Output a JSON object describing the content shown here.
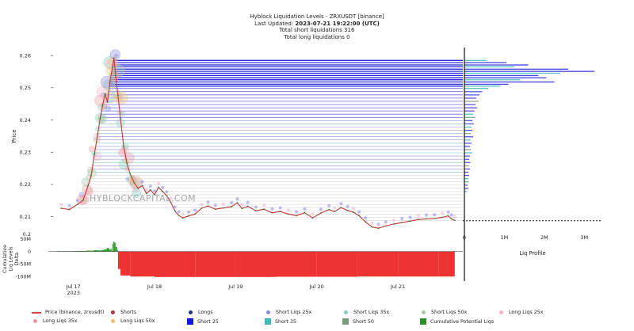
{
  "header": {
    "title": "Hyblock Liquidation Levels - ZRXUSDT [binance]",
    "updated_label": "Last Updated:",
    "updated_value": "2023-07-21 19:22:00 (UTC)",
    "short_total": "Total short liquidations 316",
    "long_total": "Total long liquidations 0"
  },
  "watermark": "HYBLOCKCAPITAL.COM",
  "chart_data": {
    "type": "line",
    "price_axis": {
      "label": "Price",
      "ticks": [
        "0.21",
        "0.22",
        "0.23",
        "0.24",
        "0.25",
        "0.26"
      ],
      "tick_values": [
        0.21,
        0.22,
        0.23,
        0.24,
        0.25,
        0.26
      ],
      "range": [
        0.2035,
        0.2625
      ],
      "bottom_label": "0.2"
    },
    "delta_axis": {
      "label": "Cumulative Liq Levels Delta",
      "ticks": [
        "50M",
        "0",
        "-50M",
        "-100M"
      ],
      "tick_values": [
        50,
        0,
        -50,
        -100
      ],
      "range": [
        -112,
        62
      ]
    },
    "time_axis": {
      "ticks": [
        "Jul 17",
        "Jul 18",
        "Jul 19",
        "Jul 20",
        "Jul 21"
      ],
      "tick_values": [
        0,
        1,
        2,
        3,
        4
      ],
      "sub_label": "2023",
      "range": [
        -0.25,
        4.8
      ]
    },
    "profile_axis": {
      "label": "Liq Profile",
      "ticks": [
        "0",
        "1M",
        "2M",
        "3M"
      ],
      "tick_values": [
        0,
        1,
        2,
        3
      ],
      "range": [
        0,
        3.45
      ]
    },
    "price_series": {
      "name": "Price (binance, zrxusdt)",
      "color": "#cc3333",
      "points": [
        [
          -0.15,
          0.2126
        ],
        [
          -0.05,
          0.2122
        ],
        [
          0.05,
          0.2138
        ],
        [
          0.12,
          0.2151
        ],
        [
          0.18,
          0.2195
        ],
        [
          0.22,
          0.2228
        ],
        [
          0.26,
          0.2295
        ],
        [
          0.3,
          0.2356
        ],
        [
          0.33,
          0.2405
        ],
        [
          0.36,
          0.2445
        ],
        [
          0.39,
          0.2482
        ],
        [
          0.42,
          0.2455
        ],
        [
          0.45,
          0.2518
        ],
        [
          0.48,
          0.2562
        ],
        [
          0.5,
          0.2592
        ],
        [
          0.52,
          0.2538
        ],
        [
          0.55,
          0.2476
        ],
        [
          0.58,
          0.2405
        ],
        [
          0.62,
          0.2318
        ],
        [
          0.66,
          0.2265
        ],
        [
          0.7,
          0.2232
        ],
        [
          0.75,
          0.2205
        ],
        [
          0.8,
          0.2188
        ],
        [
          0.85,
          0.2196
        ],
        [
          0.9,
          0.2172
        ],
        [
          0.95,
          0.2183
        ],
        [
          1.0,
          0.2168
        ],
        [
          1.05,
          0.2191
        ],
        [
          1.1,
          0.2178
        ],
        [
          1.15,
          0.2165
        ],
        [
          1.2,
          0.2145
        ],
        [
          1.25,
          0.2118
        ],
        [
          1.3,
          0.2103
        ],
        [
          1.35,
          0.2096
        ],
        [
          1.42,
          0.2102
        ],
        [
          1.5,
          0.2108
        ],
        [
          1.58,
          0.2126
        ],
        [
          1.66,
          0.2133
        ],
        [
          1.75,
          0.2123
        ],
        [
          1.85,
          0.2127
        ],
        [
          1.95,
          0.2131
        ],
        [
          2.02,
          0.2143
        ],
        [
          2.08,
          0.2125
        ],
        [
          2.15,
          0.2132
        ],
        [
          2.25,
          0.2118
        ],
        [
          2.35,
          0.2123
        ],
        [
          2.45,
          0.2112
        ],
        [
          2.55,
          0.2116
        ],
        [
          2.65,
          0.2108
        ],
        [
          2.75,
          0.2103
        ],
        [
          2.85,
          0.2112
        ],
        [
          2.95,
          0.2096
        ],
        [
          3.05,
          0.2111
        ],
        [
          3.15,
          0.2122
        ],
        [
          3.22,
          0.2116
        ],
        [
          3.3,
          0.2128
        ],
        [
          3.38,
          0.2119
        ],
        [
          3.45,
          0.2114
        ],
        [
          3.52,
          0.2103
        ],
        [
          3.6,
          0.2084
        ],
        [
          3.68,
          0.2068
        ],
        [
          3.76,
          0.2064
        ],
        [
          3.85,
          0.2071
        ],
        [
          3.95,
          0.2077
        ],
        [
          4.05,
          0.2082
        ],
        [
          4.15,
          0.2086
        ],
        [
          4.25,
          0.2091
        ],
        [
          4.35,
          0.2093
        ],
        [
          4.45,
          0.2094
        ],
        [
          4.55,
          0.2098
        ],
        [
          4.62,
          0.2102
        ],
        [
          4.66,
          0.2093
        ],
        [
          4.7,
          0.2088
        ]
      ]
    },
    "short_levels": [
      0.2585,
      0.2578,
      0.2571,
      0.2565,
      0.2558,
      0.2551,
      0.2545,
      0.2538,
      0.2531,
      0.2525,
      0.2518,
      0.2511,
      0.2505,
      0.2498,
      0.2488,
      0.2478,
      0.2468,
      0.2458,
      0.2448,
      0.2438,
      0.2428,
      0.2418,
      0.2408,
      0.2398,
      0.2388,
      0.2378,
      0.2368,
      0.2358,
      0.2348,
      0.2338,
      0.2328,
      0.2318,
      0.2308,
      0.2298,
      0.2288,
      0.2278,
      0.2268,
      0.2258,
      0.2248,
      0.2238,
      0.2228,
      0.2218,
      0.2208,
      0.2198,
      0.2188,
      0.2178,
      0.2168,
      0.2158,
      0.2148,
      0.2138,
      0.2128,
      0.2118,
      0.2108,
      0.2098,
      0.2088
    ],
    "liq_profile": [
      [
        0.2585,
        0.55
      ],
      [
        0.2578,
        1.05
      ],
      [
        0.2571,
        1.6
      ],
      [
        0.2565,
        1.25
      ],
      [
        0.2558,
        2.6
      ],
      [
        0.2551,
        3.25
      ],
      [
        0.2545,
        2.4
      ],
      [
        0.2538,
        1.85
      ],
      [
        0.2531,
        2.05
      ],
      [
        0.2525,
        1.4
      ],
      [
        0.2518,
        2.25
      ],
      [
        0.2511,
        1.1
      ],
      [
        0.2505,
        0.9
      ],
      [
        0.2498,
        0.6
      ],
      [
        0.2488,
        0.45
      ],
      [
        0.2478,
        0.38
      ],
      [
        0.2468,
        0.3
      ],
      [
        0.2458,
        0.35
      ],
      [
        0.2448,
        0.28
      ],
      [
        0.2438,
        0.32
      ],
      [
        0.2428,
        0.25
      ],
      [
        0.2418,
        0.22
      ],
      [
        0.2408,
        0.28
      ],
      [
        0.2398,
        0.2
      ],
      [
        0.2388,
        0.24
      ],
      [
        0.2378,
        0.18
      ],
      [
        0.2368,
        0.2
      ],
      [
        0.2358,
        0.16
      ],
      [
        0.2348,
        0.22
      ],
      [
        0.2338,
        0.15
      ],
      [
        0.2328,
        0.18
      ],
      [
        0.2318,
        0.14
      ],
      [
        0.2308,
        0.16
      ],
      [
        0.2298,
        0.2
      ],
      [
        0.2288,
        0.14
      ],
      [
        0.2278,
        0.12
      ],
      [
        0.2268,
        0.15
      ],
      [
        0.2258,
        0.12
      ],
      [
        0.2248,
        0.14
      ],
      [
        0.2238,
        0.1
      ],
      [
        0.2228,
        0.12
      ],
      [
        0.2218,
        0.1
      ],
      [
        0.2208,
        0.11
      ],
      [
        0.2198,
        0.08
      ],
      [
        0.2188,
        0.1
      ],
      [
        0.2178,
        0.07
      ]
    ],
    "current_price": 0.2087,
    "delta_series": {
      "name": "Cumulative Potential Liqs",
      "positive_color": "#2e9e2e",
      "negative_color": "#ee3333",
      "points": [
        [
          -0.2,
          1
        ],
        [
          0.0,
          2
        ],
        [
          0.15,
          3
        ],
        [
          0.25,
          5
        ],
        [
          0.3,
          4
        ],
        [
          0.35,
          6
        ],
        [
          0.38,
          9
        ],
        [
          0.41,
          14
        ],
        [
          0.44,
          8
        ],
        [
          0.46,
          12
        ],
        [
          0.47,
          4
        ],
        [
          0.48,
          30
        ],
        [
          0.49,
          40
        ],
        [
          0.5,
          36
        ],
        [
          0.52,
          18
        ],
        [
          0.54,
          6
        ],
        [
          0.55,
          -70
        ],
        [
          0.58,
          -96
        ],
        [
          0.7,
          -100
        ],
        [
          1.0,
          -102
        ],
        [
          1.5,
          -102
        ],
        [
          2.0,
          -102
        ],
        [
          2.5,
          -101
        ],
        [
          3.0,
          -101
        ],
        [
          3.5,
          -100
        ],
        [
          4.0,
          -100
        ],
        [
          4.5,
          -100
        ],
        [
          4.7,
          -100
        ]
      ]
    },
    "legend": [
      {
        "label": "Price (binance, zrxusdt)",
        "kind": "line",
        "color": "#d04848"
      },
      {
        "label": "Shorts",
        "kind": "dot",
        "color": "#aa3344"
      },
      {
        "label": "Longs",
        "kind": "dot",
        "color": "#223388"
      },
      {
        "label": "Short Liqs 25x",
        "kind": "dot",
        "color": "#8888dd"
      },
      {
        "label": "Short Liqs 35x",
        "kind": "dot",
        "color": "#88ccbb"
      },
      {
        "label": "Short Liqs 50x",
        "kind": "dot",
        "color": "#a8c8a8"
      },
      {
        "label": "Long Liqs 25x",
        "kind": "dot",
        "color": "#f4b4c4"
      },
      {
        "label": "Long Liqs 35x",
        "kind": "dot",
        "color": "#e89aa0"
      },
      {
        "label": "Long Liqs 50x",
        "kind": "dot",
        "color": "#eec06a"
      },
      {
        "label": "Short 25",
        "kind": "square",
        "color": "#1515dd"
      },
      {
        "label": "Short 35",
        "kind": "square",
        "color": "#3fb8b8"
      },
      {
        "label": "Short 50",
        "kind": "square",
        "color": "#7c9a7c"
      },
      {
        "label": "Cumulative Potential Liqs",
        "kind": "square",
        "color": "#2e8e2e"
      }
    ]
  }
}
